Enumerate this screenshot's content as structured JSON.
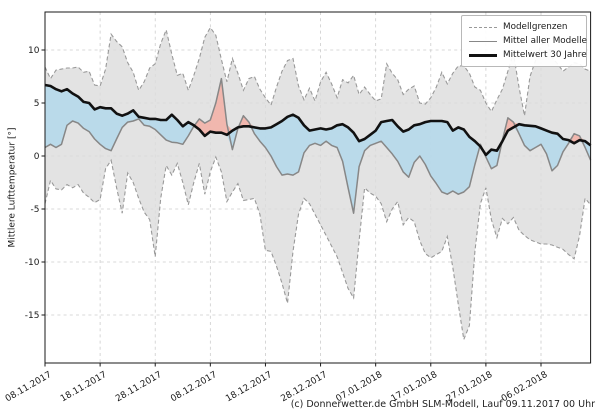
{
  "figure": {
    "ylabel": "Mittlere Lufttemperatur [°]",
    "footer": "(c) Donnerwetter.de GmbH SLM-Modell, Lauf 09.11.2017 00 Uhr",
    "legend": {
      "bounds_label": "Modellgrenzen",
      "mean_label": "Mittel aller Modelle",
      "climate_label": "Mittelwert 30 Jahre"
    }
  },
  "colors": {
    "band_fill": "#dcdcdc",
    "band_edge": "#999999",
    "mean_line": "#878787",
    "climate_line": "#111111",
    "cold_fill": "#b5d8ea",
    "warm_fill": "#f2b1a7",
    "grid": "#cccccc",
    "spine": "#1a1a1a",
    "tick_text": "#1a1a1a"
  },
  "chart_data": {
    "type": "line",
    "title": "",
    "xlabel": "",
    "ylabel": "Mittlere Lufttemperatur [°]",
    "grid": true,
    "legend_position": "upper right",
    "ylim": [
      -19.5,
      13.6
    ],
    "y_ticks": [
      -15,
      -10,
      -5,
      0,
      5,
      10
    ],
    "x_tick_days": [
      0,
      10,
      20,
      30,
      40,
      50,
      60,
      70,
      80,
      90
    ],
    "x_tick_labels": [
      "08.11.2017",
      "18.11.2017",
      "28.11.2017",
      "08.12.2017",
      "18.12.2017",
      "28.12.2017",
      "07.01.2018",
      "17.01.2018",
      "27.01.2018",
      "06.02.2018"
    ],
    "x_days_range": [
      0,
      99
    ],
    "series": [
      {
        "name": "Modellgrenzen (obere Grenze)",
        "style": "dashed-gray",
        "values": [
          8.4,
          7.3,
          8.1,
          8.2,
          8.3,
          8.3,
          8.4,
          7.9,
          8.0,
          6.7,
          6.6,
          8.2,
          11.5,
          10.8,
          10.3,
          8.8,
          7.9,
          6.2,
          7.0,
          8.3,
          8.7,
          10.6,
          11.9,
          9.6,
          7.6,
          7.8,
          6.2,
          7.6,
          9.2,
          11.2,
          12.1,
          11.4,
          9.1,
          7.0,
          9.2,
          7.8,
          6.2,
          7.3,
          7.5,
          6.3,
          5.5,
          4.8,
          6.5,
          8.0,
          9.0,
          9.2,
          6.6,
          5.3,
          6.4,
          5.2,
          7.0,
          7.9,
          6.8,
          5.5,
          7.2,
          6.9,
          7.6,
          5.8,
          6.5,
          5.8,
          5.2,
          5.4,
          8.7,
          7.8,
          7.2,
          5.8,
          6.3,
          6.6,
          5.0,
          4.9,
          5.5,
          6.5,
          7.9,
          6.8,
          7.8,
          8.5,
          8.5,
          7.8,
          6.5,
          6.2,
          5.0,
          4.2,
          5.3,
          6.3,
          8.0,
          9.7,
          6.5,
          3.8,
          7.5,
          9.0,
          10.4,
          11.1,
          9.3,
          8.7,
          8.0,
          8.4,
          8.8,
          8.7,
          8.2,
          8.0
        ]
      },
      {
        "name": "Modellgrenzen (untere Grenze)",
        "style": "dashed-gray",
        "values": [
          -4.5,
          -2.3,
          -3.1,
          -3.2,
          -2.7,
          -3.0,
          -2.7,
          -3.5,
          -3.9,
          -4.4,
          -4.1,
          -1.2,
          -0.4,
          -3.0,
          -5.4,
          -1.6,
          -2.5,
          -4.0,
          -5.3,
          -6.0,
          -9.5,
          -4.0,
          -0.9,
          -1.8,
          -0.7,
          -2.5,
          -4.6,
          -2.5,
          -0.7,
          -3.6,
          -1.5,
          -0.1,
          -1.5,
          -4.3,
          -3.4,
          -2.6,
          -4.2,
          -4.1,
          -4.0,
          -5.5,
          -8.9,
          -9.0,
          -10.4,
          -12.0,
          -13.9,
          -9.0,
          -5.5,
          -4.0,
          -4.5,
          -5.5,
          -6.5,
          -7.5,
          -8.5,
          -9.5,
          -11.0,
          -12.5,
          -13.4,
          -8.0,
          -3.0,
          -3.5,
          -3.8,
          -4.5,
          -6.2,
          -5.0,
          -4.3,
          -6.5,
          -5.8,
          -6.2,
          -8.0,
          -9.2,
          -9.6,
          -9.3,
          -9.0,
          -7.6,
          -10.5,
          -14.0,
          -17.3,
          -16.0,
          -9.0,
          -4.5,
          -3.0,
          -6.0,
          -7.7,
          -5.9,
          -6.4,
          -5.8,
          -7.0,
          -7.5,
          -7.9,
          -8.1,
          -8.3,
          -8.3,
          -8.4,
          -8.6,
          -8.8,
          -9.3,
          -9.7,
          -7.5,
          -4.0,
          -4.6
        ]
      },
      {
        "name": "Mittel aller Modelle",
        "style": "solid-gray",
        "values": [
          0.8,
          1.1,
          0.8,
          1.1,
          2.9,
          3.3,
          3.1,
          2.6,
          2.3,
          1.6,
          1.1,
          0.7,
          0.5,
          1.6,
          2.7,
          3.2,
          3.3,
          3.5,
          2.9,
          2.8,
          2.5,
          2.0,
          1.5,
          1.3,
          1.25,
          1.1,
          1.9,
          2.8,
          3.5,
          3.1,
          3.4,
          5.0,
          7.3,
          3.0,
          0.6,
          2.6,
          3.8,
          3.2,
          2.1,
          1.4,
          0.8,
          0.0,
          -1.0,
          -1.8,
          -1.7,
          -1.8,
          -1.5,
          0.3,
          1.0,
          1.2,
          1.0,
          1.4,
          1.0,
          0.8,
          -0.5,
          -3.0,
          -5.4,
          -1.0,
          0.5,
          1.0,
          1.2,
          1.4,
          0.8,
          0.2,
          -0.5,
          -1.5,
          -2.0,
          -0.6,
          0.0,
          -0.8,
          -1.9,
          -2.6,
          -3.4,
          -3.6,
          -3.3,
          -3.6,
          -3.4,
          -2.9,
          -0.8,
          1.1,
          -0.1,
          -1.2,
          -0.9,
          1.5,
          3.6,
          3.2,
          2.1,
          1.0,
          0.5,
          0.8,
          1.1,
          0.2,
          -1.4,
          -0.9,
          0.4,
          1.2,
          2.1,
          1.9,
          0.8,
          -0.4
        ]
      },
      {
        "name": "Mittelwert 30 Jahre",
        "style": "thick-black",
        "values": [
          6.7,
          6.6,
          6.3,
          6.1,
          6.3,
          5.9,
          5.6,
          5.1,
          5.0,
          4.4,
          4.6,
          4.5,
          4.5,
          4.0,
          3.8,
          4.0,
          4.3,
          3.7,
          3.6,
          3.5,
          3.5,
          3.4,
          3.4,
          3.9,
          3.4,
          2.8,
          3.2,
          2.9,
          2.5,
          1.9,
          2.3,
          2.2,
          2.2,
          2.0,
          2.4,
          2.7,
          2.8,
          2.8,
          2.7,
          2.6,
          2.6,
          2.7,
          3.0,
          3.3,
          3.7,
          3.9,
          3.6,
          2.9,
          2.4,
          2.5,
          2.6,
          2.5,
          2.6,
          2.9,
          3.0,
          2.7,
          2.2,
          1.4,
          1.6,
          2.0,
          2.4,
          3.2,
          3.3,
          3.4,
          2.8,
          2.3,
          2.5,
          2.9,
          3.0,
          3.2,
          3.3,
          3.3,
          3.3,
          3.2,
          2.4,
          2.7,
          2.5,
          1.8,
          1.4,
          0.9,
          0.1,
          0.6,
          0.5,
          1.4,
          2.4,
          2.7,
          3.0,
          2.9,
          2.85,
          2.8,
          2.6,
          2.4,
          2.2,
          2.1,
          1.6,
          1.5,
          1.2,
          1.5,
          1.4,
          1.0
        ]
      }
    ],
    "fills": [
      {
        "name": "Modellgrenzen-Band",
        "between": [
          "obere Grenze",
          "untere Grenze"
        ],
        "color": "#dcdcdc"
      },
      {
        "name": "kälter als Klimamittel",
        "between": [
          "Mittel aller Modelle",
          "Mittelwert 30 Jahre"
        ],
        "where": "mean < climate",
        "color": "#b5d8ea"
      },
      {
        "name": "wärmer als Klimamittel",
        "between": [
          "Mittel aller Modelle",
          "Mittelwert 30 Jahre"
        ],
        "where": "mean > climate",
        "color": "#f2b1a7"
      }
    ]
  }
}
